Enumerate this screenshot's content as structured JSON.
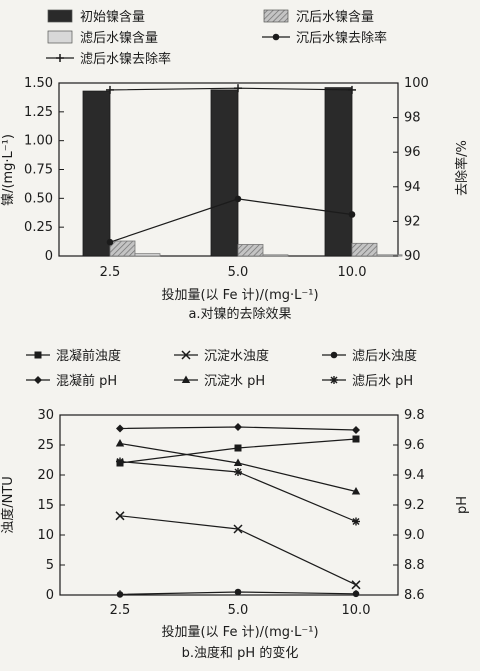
{
  "chart_data": [
    {
      "type": "bar",
      "caption": "a.对镍的去除效果",
      "categories": [
        "2.5",
        "5.0",
        "10.0"
      ],
      "xlabel": "投加量(以 Fe 计)/(mg·L⁻¹)",
      "ylabel": "镍/(mg·L⁻¹)",
      "ylabel_right": "去除率/%",
      "ylim": [
        0,
        1.5
      ],
      "yticks": [
        "0",
        "0.25",
        "0.50",
        "0.75",
        "1.00",
        "1.25",
        "1.50"
      ],
      "ylim_right": [
        90,
        100
      ],
      "yticks_right": [
        "90",
        "92",
        "94",
        "96",
        "98",
        "100"
      ],
      "legend": [
        {
          "label": "初始镍含量",
          "marker": "bar-dark"
        },
        {
          "label": "沉后水镍含量",
          "marker": "bar-hatch"
        },
        {
          "label": "滤后水镍含量",
          "marker": "bar-light"
        },
        {
          "label": "沉后水镍去除率",
          "marker": "dot"
        },
        {
          "label": "滤后水镍去除率",
          "marker": "plus"
        }
      ],
      "series": [
        {
          "name": "初始镍含量",
          "kind": "bar",
          "axis": "left",
          "color": "#2a2a2a",
          "values": [
            1.43,
            1.44,
            1.46
          ]
        },
        {
          "name": "沉后水镍含量",
          "kind": "bar",
          "axis": "left",
          "color": "#a5a5a5",
          "values": [
            0.13,
            0.1,
            0.11
          ]
        },
        {
          "name": "滤后水镍含量",
          "kind": "bar",
          "axis": "left",
          "color": "#d8d8d8",
          "values": [
            0.02,
            0.01,
            0.01
          ]
        },
        {
          "name": "沉后水镍去除率",
          "kind": "line",
          "axis": "right",
          "marker": "dot",
          "values": [
            90.8,
            93.3,
            92.4
          ]
        },
        {
          "name": "滤后水镍去除率",
          "kind": "line",
          "axis": "right",
          "marker": "plus",
          "values": [
            99.6,
            99.7,
            99.6
          ]
        }
      ]
    },
    {
      "type": "line",
      "caption": "b.浊度和 pH 的变化",
      "categories": [
        "2.5",
        "5.0",
        "10.0"
      ],
      "xlabel": "投加量(以 Fe 计)/(mg·L⁻¹)",
      "ylabel": "浊度/NTU",
      "ylabel_right": "pH",
      "ylim": [
        0,
        30
      ],
      "yticks": [
        "0",
        "5",
        "10",
        "15",
        "20",
        "25",
        "30"
      ],
      "ylim_right": [
        8.6,
        9.8
      ],
      "yticks_right": [
        "8.6",
        "8.8",
        "9.0",
        "9.2",
        "9.4",
        "9.6",
        "9.8"
      ],
      "legend": [
        {
          "label": "混凝前浊度",
          "marker": "square"
        },
        {
          "label": "沉淀水浊度",
          "marker": "x"
        },
        {
          "label": "滤后水浊度",
          "marker": "dot"
        },
        {
          "label": "混凝前 pH",
          "marker": "diamond"
        },
        {
          "label": "沉淀水 pH",
          "marker": "triangle"
        },
        {
          "label": "滤后水 pH",
          "marker": "star"
        }
      ],
      "series": [
        {
          "name": "混凝前浊度",
          "axis": "left",
          "marker": "square",
          "values": [
            22.0,
            24.5,
            26.0
          ]
        },
        {
          "name": "沉淀水浊度",
          "axis": "left",
          "marker": "x",
          "values": [
            13.2,
            11.0,
            1.7
          ]
        },
        {
          "name": "滤后水浊度",
          "axis": "left",
          "marker": "dot",
          "values": [
            0.1,
            0.5,
            0.2
          ]
        },
        {
          "name": "混凝前 pH",
          "axis": "right",
          "marker": "diamond",
          "values": [
            9.71,
            9.72,
            9.7
          ]
        },
        {
          "name": "沉淀水 pH",
          "axis": "right",
          "marker": "triangle",
          "values": [
            9.61,
            9.48,
            9.29
          ]
        },
        {
          "name": "滤后水 pH",
          "axis": "right",
          "marker": "star",
          "values": [
            9.49,
            9.42,
            9.09
          ]
        }
      ]
    }
  ]
}
